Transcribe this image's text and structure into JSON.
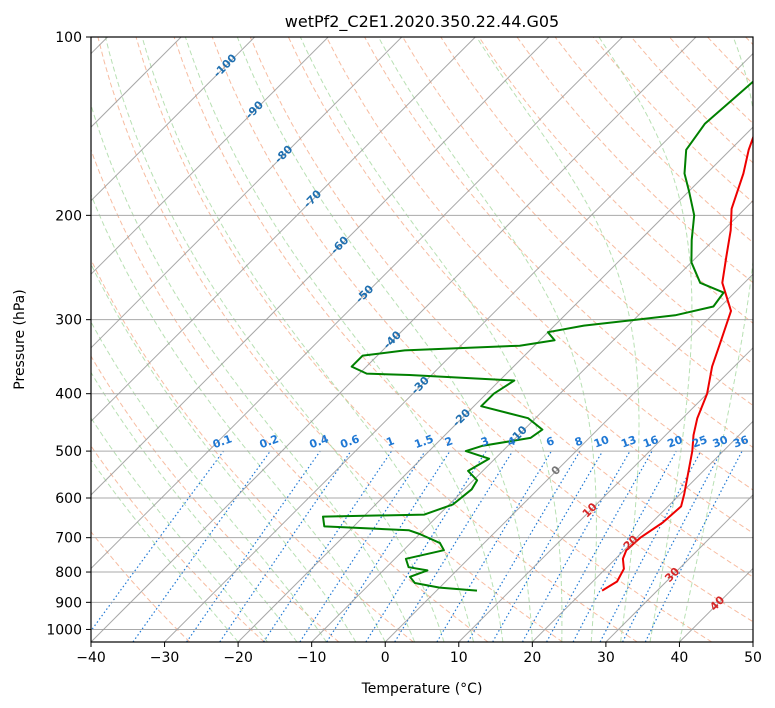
{
  "chart_data": {
    "type": "line",
    "subtype": "skew-t log-p",
    "title": "wetPf2_C2E1.2020.350.22.44.G05",
    "xlabel": "Temperature (°C)",
    "ylabel": "Pressure (hPa)",
    "xlim": [
      -40,
      50
    ],
    "ylim": [
      1050,
      100
    ],
    "y_scale": "log",
    "grid": true,
    "x_ticks": [
      -40,
      -30,
      -20,
      -10,
      0,
      10,
      20,
      30,
      40,
      50
    ],
    "y_ticks": [
      100,
      200,
      300,
      400,
      500,
      600,
      700,
      800,
      900,
      1000
    ],
    "isotherm_labels": [
      -100,
      -90,
      -80,
      -70,
      -60,
      -50,
      -40,
      -30,
      -20,
      -10,
      0,
      10,
      20,
      30,
      40
    ],
    "mixing_ratio_labels": [
      "0.1",
      "0.2",
      "0.4",
      "0.6",
      "1",
      "1.5",
      "2",
      "3",
      "4",
      "6",
      "8",
      "10",
      "13",
      "16",
      "20",
      "25",
      "30",
      "36"
    ],
    "mixing_ratio_values": [
      0.1,
      0.2,
      0.4,
      0.6,
      1,
      1.5,
      2,
      3,
      4,
      6,
      8,
      10,
      13,
      16,
      20,
      25,
      30,
      36
    ],
    "colors": {
      "temperature": "#ee0000",
      "dewpoint": "#008000",
      "isotherm": "#999999",
      "dry_adiabat": "#f4a582",
      "moist_adiabat": "#a6d8a0",
      "mixing_ratio": "#1f78d4",
      "isotherm_label_cold": "#1f6fb0",
      "isotherm_label_warm": "#d62728",
      "isotherm_label_zero": "#777777"
    },
    "series": [
      {
        "name": "temperature",
        "points": [
          [
            22.5,
            860
          ],
          [
            23.3,
            830
          ],
          [
            22.5,
            790
          ],
          [
            21.0,
            760
          ],
          [
            20.3,
            735
          ],
          [
            20.5,
            700
          ],
          [
            21.5,
            660
          ],
          [
            21.8,
            620
          ],
          [
            20.5,
            590
          ],
          [
            18.5,
            550
          ],
          [
            15.8,
            500
          ],
          [
            13.8,
            470
          ],
          [
            12.0,
            440
          ],
          [
            10.0,
            400
          ],
          [
            7.0,
            360
          ],
          [
            5.0,
            330
          ],
          [
            2.0,
            290
          ],
          [
            -3.0,
            260
          ],
          [
            -6.0,
            235
          ],
          [
            -9.0,
            212
          ],
          [
            -11.8,
            195
          ],
          [
            -15.0,
            170
          ],
          [
            -17.5,
            155
          ],
          [
            -19.0,
            145
          ],
          [
            -19.5,
            135
          ],
          [
            -21.0,
            125
          ],
          [
            -22.5,
            115
          ],
          [
            -24.0,
            105
          ],
          [
            -25.0,
            100
          ]
        ]
      },
      {
        "name": "dewpoint",
        "points": [
          [
            5.5,
            860
          ],
          [
            0.0,
            850
          ],
          [
            -4.0,
            835
          ],
          [
            -5.5,
            815
          ],
          [
            -4.0,
            795
          ],
          [
            -7.0,
            785
          ],
          [
            -8.5,
            760
          ],
          [
            -4.5,
            735
          ],
          [
            -6.0,
            715
          ],
          [
            -10.0,
            690
          ],
          [
            -12.0,
            680
          ],
          [
            -24.0,
            670
          ],
          [
            -25.5,
            645
          ],
          [
            -12.0,
            640
          ],
          [
            -9.5,
            615
          ],
          [
            -9.0,
            580
          ],
          [
            -9.5,
            560
          ],
          [
            -12.0,
            540
          ],
          [
            -10.8,
            515
          ],
          [
            -15.0,
            500
          ],
          [
            -13.5,
            490
          ],
          [
            -8.0,
            475
          ],
          [
            -7.5,
            460
          ],
          [
            -11.0,
            440
          ],
          [
            -19.0,
            420
          ],
          [
            -19.0,
            400
          ],
          [
            -18.0,
            380
          ],
          [
            -33.0,
            372
          ],
          [
            -39.0,
            370
          ],
          [
            -42.0,
            360
          ],
          [
            -42.0,
            345
          ],
          [
            -37.0,
            338
          ],
          [
            -22.0,
            332
          ],
          [
            -18.0,
            325
          ],
          [
            -20.0,
            315
          ],
          [
            -16.0,
            307
          ],
          [
            -5.0,
            295
          ],
          [
            -1.0,
            285
          ],
          [
            -1.5,
            270
          ],
          [
            -6.0,
            260
          ],
          [
            -10.0,
            240
          ],
          [
            -13.0,
            220
          ],
          [
            -16.0,
            200
          ],
          [
            -20.0,
            182
          ],
          [
            -23.0,
            170
          ],
          [
            -26.0,
            155
          ],
          [
            -27.0,
            140
          ],
          [
            -26.5,
            127
          ],
          [
            -26.0,
            115
          ],
          [
            -25.5,
            108
          ],
          [
            -26.0,
            100
          ]
        ]
      }
    ]
  }
}
